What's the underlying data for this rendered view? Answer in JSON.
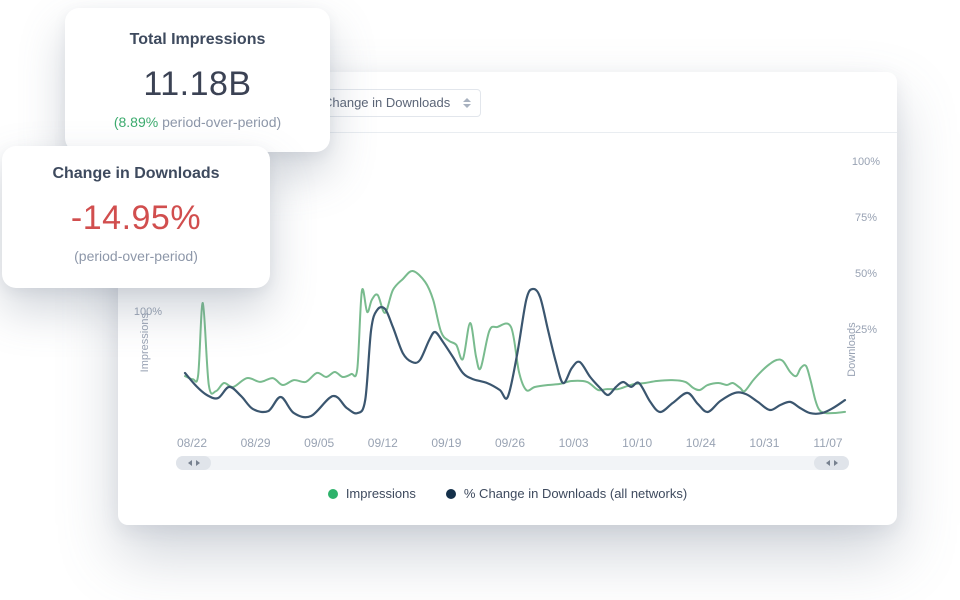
{
  "cards": {
    "impressions": {
      "title": "Total Impressions",
      "value": "11.18B",
      "delta_pct": "(8.89%",
      "delta_label": " period-over-period)"
    },
    "downloads": {
      "title": "Change in Downloads",
      "value": "-14.95%",
      "sub": "(period-over-period)"
    }
  },
  "toolbar": {
    "metric_select_value": "Change in Downloads"
  },
  "colors": {
    "positive_green": "#3cab6e",
    "negative_red": "#d14e4e",
    "impressions_line": "#79bb8e",
    "downloads_line": "#3b566f",
    "legend_green_dot": "#2eb26b",
    "legend_navy_dot": "#14304a"
  },
  "chart_data": {
    "type": "line",
    "title": "",
    "xlabel": "",
    "x_axis": {
      "tick_labels": [
        "08/22",
        "08/29",
        "09/05",
        "09/12",
        "09/19",
        "09/26",
        "10/03",
        "10/10",
        "10/24",
        "10/31",
        "11/07"
      ]
    },
    "y_axis_left": {
      "caption": "Impressions",
      "visible_tick": "100%"
    },
    "y_axis_right": {
      "caption": "Downloads",
      "tick_labels": [
        "100%",
        "75%",
        "50%",
        "25%"
      ]
    },
    "grid": false,
    "legend_position": "bottom-center",
    "series": [
      {
        "name": "Impressions",
        "axis": "left",
        "unit": "percent",
        "line_color": "#79bb8e",
        "dot_color": "#2eb26b",
        "points": [
          [
            0,
            71.4
          ],
          [
            0.012,
            70
          ],
          [
            0.02,
            72
          ],
          [
            0.027,
            104
          ],
          [
            0.036,
            67.4
          ],
          [
            0.047,
            64.7
          ],
          [
            0.059,
            68.3
          ],
          [
            0.073,
            66.5
          ],
          [
            0.094,
            70.5
          ],
          [
            0.114,
            68.8
          ],
          [
            0.133,
            70.5
          ],
          [
            0.148,
            67.4
          ],
          [
            0.165,
            69.6
          ],
          [
            0.183,
            68.8
          ],
          [
            0.2,
            72.8
          ],
          [
            0.214,
            71
          ],
          [
            0.227,
            73.2
          ],
          [
            0.239,
            71
          ],
          [
            0.252,
            72.3
          ],
          [
            0.261,
            74.6
          ],
          [
            0.268,
            109.4
          ],
          [
            0.276,
            100
          ],
          [
            0.283,
            105.4
          ],
          [
            0.292,
            107.6
          ],
          [
            0.303,
            99.6
          ],
          [
            0.315,
            109.8
          ],
          [
            0.33,
            114.7
          ],
          [
            0.345,
            118.3
          ],
          [
            0.364,
            113.4
          ],
          [
            0.376,
            105.4
          ],
          [
            0.388,
            91.1
          ],
          [
            0.4,
            87.1
          ],
          [
            0.411,
            85.3
          ],
          [
            0.421,
            79
          ],
          [
            0.432,
            95.1
          ],
          [
            0.441,
            79.9
          ],
          [
            0.448,
            75
          ],
          [
            0.461,
            91.5
          ],
          [
            0.473,
            93.3
          ],
          [
            0.494,
            93.3
          ],
          [
            0.506,
            73.2
          ],
          [
            0.517,
            65.2
          ],
          [
            0.53,
            66.5
          ],
          [
            0.55,
            67.4
          ],
          [
            0.568,
            67.9
          ],
          [
            0.586,
            69.2
          ],
          [
            0.609,
            68.8
          ],
          [
            0.626,
            65.2
          ],
          [
            0.639,
            65.6
          ],
          [
            0.656,
            65.6
          ],
          [
            0.67,
            66.9
          ],
          [
            0.682,
            67.9
          ],
          [
            0.697,
            68.3
          ],
          [
            0.715,
            69.2
          ],
          [
            0.738,
            69.6
          ],
          [
            0.758,
            68.8
          ],
          [
            0.77,
            66.1
          ],
          [
            0.78,
            65.2
          ],
          [
            0.792,
            67.4
          ],
          [
            0.808,
            68.3
          ],
          [
            0.821,
            67.4
          ],
          [
            0.83,
            68.3
          ],
          [
            0.841,
            66.1
          ],
          [
            0.848,
            64.7
          ],
          [
            0.861,
            69.6
          ],
          [
            0.874,
            73.7
          ],
          [
            0.886,
            76.8
          ],
          [
            0.897,
            78.6
          ],
          [
            0.906,
            78.1
          ],
          [
            0.917,
            73.2
          ],
          [
            0.926,
            71.4
          ],
          [
            0.933,
            75
          ],
          [
            0.941,
            75.9
          ],
          [
            0.948,
            69.2
          ],
          [
            0.955,
            60.7
          ],
          [
            0.961,
            56.3
          ],
          [
            0.97,
            54.9
          ],
          [
            0.985,
            54.9
          ],
          [
            1,
            55.4
          ]
        ]
      },
      {
        "name": "% Change in Downloads (all networks)",
        "axis": "right",
        "unit": "percent",
        "line_color": "#3b566f",
        "dot_color": "#14304a",
        "points": [
          [
            0,
            5.8
          ],
          [
            0.017,
            0
          ],
          [
            0.033,
            -4
          ],
          [
            0.05,
            -5.4
          ],
          [
            0.067,
            -0.4
          ],
          [
            0.085,
            -4.5
          ],
          [
            0.103,
            -10.3
          ],
          [
            0.126,
            -11.2
          ],
          [
            0.145,
            -4.9
          ],
          [
            0.165,
            -12.1
          ],
          [
            0.191,
            -13.4
          ],
          [
            0.224,
            -4.5
          ],
          [
            0.245,
            -9.8
          ],
          [
            0.261,
            -12.1
          ],
          [
            0.273,
            -6.3
          ],
          [
            0.282,
            25
          ],
          [
            0.291,
            33.9
          ],
          [
            0.303,
            34.4
          ],
          [
            0.315,
            26.3
          ],
          [
            0.33,
            14.7
          ],
          [
            0.344,
            10.7
          ],
          [
            0.356,
            11.6
          ],
          [
            0.37,
            20.5
          ],
          [
            0.379,
            24.1
          ],
          [
            0.391,
            19.6
          ],
          [
            0.406,
            12.9
          ],
          [
            0.421,
            5.8
          ],
          [
            0.436,
            3.1
          ],
          [
            0.458,
            1.3
          ],
          [
            0.477,
            -1.8
          ],
          [
            0.489,
            -4.9
          ],
          [
            0.503,
            13.8
          ],
          [
            0.517,
            38.4
          ],
          [
            0.527,
            43.3
          ],
          [
            0.538,
            39.7
          ],
          [
            0.55,
            25
          ],
          [
            0.562,
            10.7
          ],
          [
            0.573,
            1.3
          ],
          [
            0.586,
            8
          ],
          [
            0.598,
            10.7
          ],
          [
            0.614,
            4
          ],
          [
            0.629,
            -0.9
          ],
          [
            0.641,
            -4
          ],
          [
            0.653,
            -0.4
          ],
          [
            0.664,
            1.8
          ],
          [
            0.676,
            -0.4
          ],
          [
            0.688,
            1.3
          ],
          [
            0.705,
            -7.1
          ],
          [
            0.72,
            -11.6
          ],
          [
            0.739,
            -7.6
          ],
          [
            0.761,
            -3.1
          ],
          [
            0.777,
            -8
          ],
          [
            0.792,
            -11.6
          ],
          [
            0.811,
            -6.7
          ],
          [
            0.833,
            -3.1
          ],
          [
            0.85,
            -3.6
          ],
          [
            0.868,
            -7.1
          ],
          [
            0.886,
            -10.7
          ],
          [
            0.902,
            -8.5
          ],
          [
            0.917,
            -7.1
          ],
          [
            0.932,
            -9.8
          ],
          [
            0.947,
            -12.1
          ],
          [
            0.965,
            -12.1
          ],
          [
            0.982,
            -9.8
          ],
          [
            1,
            -6.3
          ]
        ]
      }
    ]
  }
}
